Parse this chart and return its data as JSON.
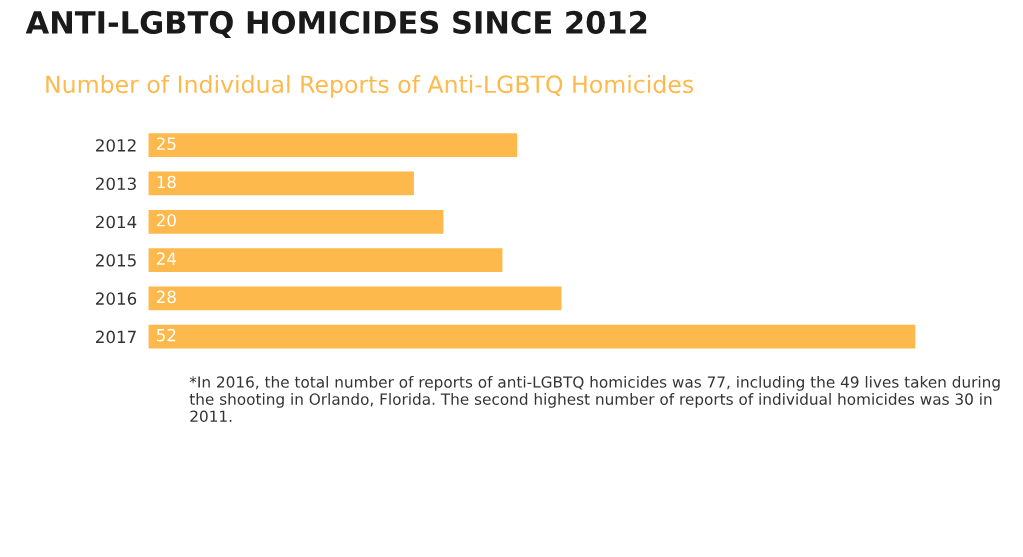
{
  "chart_data": {
    "type": "bar",
    "orientation": "horizontal",
    "title": "ANTI-LGBTQ HOMICIDES SINCE 2012",
    "subtitle": "Number of Individual Reports of Anti-LGBTQ Homicides",
    "categories": [
      "2012",
      "2013",
      "2014",
      "2015",
      "2016",
      "2017"
    ],
    "values": [
      25,
      18,
      20,
      24,
      28,
      52
    ],
    "color": "#fdb94b",
    "data_labels": true,
    "tick_labels": "y",
    "annotations": [
      "*In 2016, the total number of reports of anti-LGBTQ homicides was 77, including the 49 lives taken during the shooting in Orlando, Florida. The second highest number of reports of individual homicides was 30 in 2011."
    ]
  }
}
